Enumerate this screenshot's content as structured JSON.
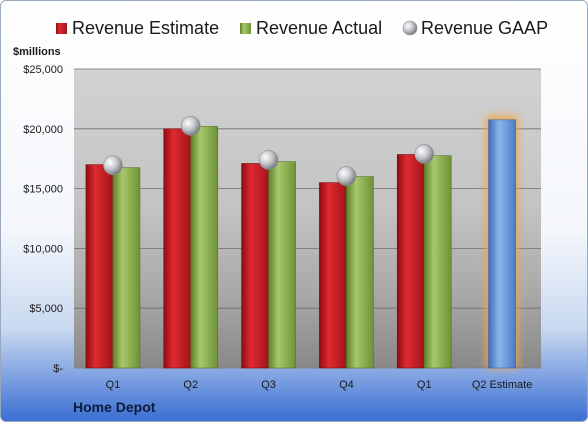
{
  "chart_data": {
    "type": "bar",
    "company": "Home Depot",
    "unit_label": "$millions",
    "categories": [
      "Q1",
      "Q2",
      "Q3",
      "Q4",
      "Q1",
      "Q2 Estimate"
    ],
    "series": [
      {
        "name": "Revenue Estimate",
        "color": "#c0141b",
        "values": [
          17000,
          20000,
          17100,
          15500,
          17850,
          null
        ]
      },
      {
        "name": "Revenue Actual",
        "color": "#8bb04a",
        "values": [
          16750,
          20200,
          17250,
          16000,
          17750,
          null
        ]
      },
      {
        "name": "Revenue GAAP",
        "color": "#b9bcc2",
        "marker": "circle",
        "values": [
          16950,
          20250,
          17400,
          16050,
          17900,
          null
        ]
      },
      {
        "name": "Q2 Estimate",
        "color": "#5a8fd6",
        "highlight": "#f3a64a",
        "values": [
          null,
          null,
          null,
          null,
          null,
          20750
        ]
      }
    ],
    "yticks": [
      "$-",
      "$5,000",
      "$10,000",
      "$15,000",
      "$20,000",
      "$25,000"
    ],
    "ylim": [
      0,
      25000
    ],
    "grid": true,
    "legend_position": "top"
  }
}
